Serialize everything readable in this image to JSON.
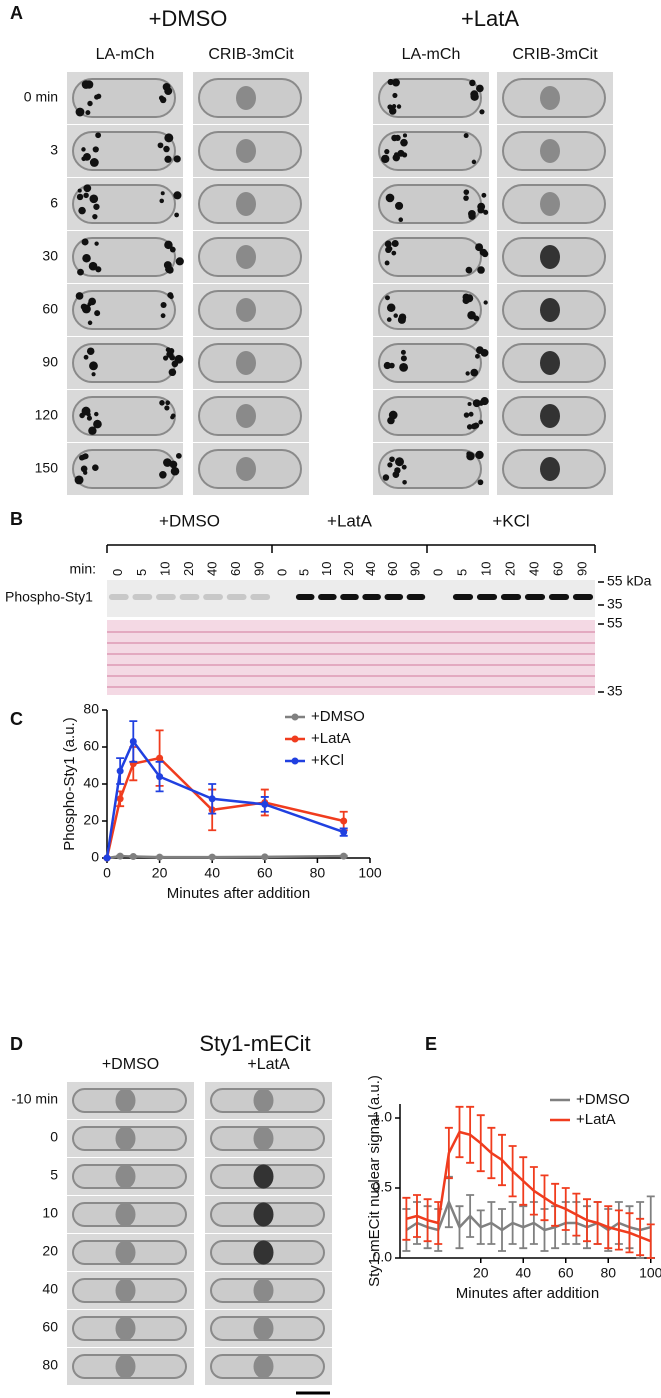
{
  "panel_a": {
    "label": "A",
    "conditions": [
      {
        "title": "+DMSO",
        "channels": [
          "LA-mCh",
          "CRIB-3mCit"
        ]
      },
      {
        "title": "+LatA",
        "channels": [
          "LA-mCh",
          "CRIB-3mCit"
        ]
      }
    ],
    "times": [
      "0 min",
      "3",
      "6",
      "30",
      "60",
      "90",
      "120",
      "150"
    ]
  },
  "panel_b": {
    "label": "B",
    "groups": [
      "+DMSO",
      "+LatA",
      "+KCl"
    ],
    "min_label": "min:",
    "lanes": [
      "0",
      "5",
      "10",
      "20",
      "40",
      "60",
      "90"
    ],
    "row_label": "Phospho-Sty1",
    "blot_markers": [
      "55 kDa",
      "35"
    ],
    "stain_markers": [
      "55",
      "35"
    ]
  },
  "panel_d": {
    "label": "D",
    "title": "Sty1-mECit",
    "conditions": [
      "+DMSO",
      "+LatA"
    ],
    "times": [
      "-10 min",
      "0",
      "5",
      "10",
      "20",
      "40",
      "60",
      "80"
    ]
  },
  "chart_data": [
    {
      "type": "line",
      "label": "C",
      "ylabel": "Phospho-Sty1 (a.u.)",
      "xlabel": "Minutes after addition",
      "legend": "upper right",
      "x": [
        0,
        5,
        10,
        20,
        40,
        60,
        90
      ],
      "xlim": [
        0,
        100
      ],
      "xticks": [
        0,
        20,
        40,
        60,
        80,
        100
      ],
      "ylim": [
        0,
        80
      ],
      "yticks": [
        0,
        20,
        40,
        60,
        80
      ],
      "markers": true,
      "series": [
        {
          "name": "+DMSO",
          "color": "#808080",
          "values": [
            0,
            1,
            0.8,
            0.5,
            0.5,
            0.6,
            1
          ],
          "errors": [
            0,
            0.3,
            0.3,
            0.2,
            0.2,
            0.2,
            0.3
          ]
        },
        {
          "name": "+LatA",
          "color": "#f03c1e",
          "values": [
            0,
            32,
            51,
            54,
            26,
            30,
            20
          ],
          "errors": [
            0,
            4,
            9,
            15,
            11,
            7,
            5
          ]
        },
        {
          "name": "+KCl",
          "color": "#2040e0",
          "values": [
            0,
            47,
            63,
            44,
            32,
            29,
            14
          ],
          "errors": [
            0,
            7,
            11,
            8,
            8,
            4,
            2
          ]
        }
      ]
    },
    {
      "type": "line",
      "label": "E",
      "ylabel": "Sty1-mECit  nuclear signal (a.u.)",
      "xlabel": "Minutes after addition",
      "legend": "upper right",
      "x": [
        -15,
        -10,
        -5,
        0,
        5,
        10,
        15,
        20,
        25,
        30,
        35,
        40,
        45,
        50,
        55,
        60,
        65,
        70,
        75,
        80,
        85,
        90,
        95,
        100
      ],
      "xlim": [
        -18,
        102
      ],
      "xticks": [
        20,
        40,
        60,
        80,
        100
      ],
      "ylim": [
        0,
        1.1
      ],
      "yticks": [
        {
          "value": 0,
          "label": "0.0"
        },
        {
          "value": 0.5,
          "label": "0.5"
        },
        {
          "value": 1,
          "label": "1.0"
        }
      ],
      "markers": false,
      "series": [
        {
          "name": "+DMSO",
          "color": "#808080",
          "values": [
            0.2,
            0.25,
            0.22,
            0.2,
            0.4,
            0.22,
            0.3,
            0.22,
            0.25,
            0.2,
            0.25,
            0.22,
            0.25,
            0.2,
            0.22,
            0.25,
            0.25,
            0.22,
            0.25,
            0.2,
            0.25,
            0.22,
            0.2,
            0.22
          ],
          "errors": [
            0.15,
            0.15,
            0.15,
            0.15,
            0.18,
            0.15,
            0.15,
            0.12,
            0.15,
            0.15,
            0.15,
            0.15,
            0.15,
            0.15,
            0.15,
            0.15,
            0.15,
            0.15,
            0.15,
            0.15,
            0.15,
            0.15,
            0.2,
            0.22
          ]
        },
        {
          "name": "+LatA",
          "color": "#f03c1e",
          "values": [
            0.28,
            0.3,
            0.27,
            0.25,
            0.75,
            0.9,
            0.88,
            0.82,
            0.75,
            0.7,
            0.62,
            0.55,
            0.48,
            0.43,
            0.38,
            0.35,
            0.31,
            0.27,
            0.25,
            0.22,
            0.2,
            0.18,
            0.15,
            0.12
          ],
          "errors": [
            0.15,
            0.15,
            0.15,
            0.15,
            0.18,
            0.18,
            0.2,
            0.2,
            0.18,
            0.18,
            0.18,
            0.17,
            0.17,
            0.16,
            0.15,
            0.15,
            0.15,
            0.15,
            0.15,
            0.15,
            0.14,
            0.14,
            0.13,
            0.12
          ]
        }
      ]
    }
  ]
}
